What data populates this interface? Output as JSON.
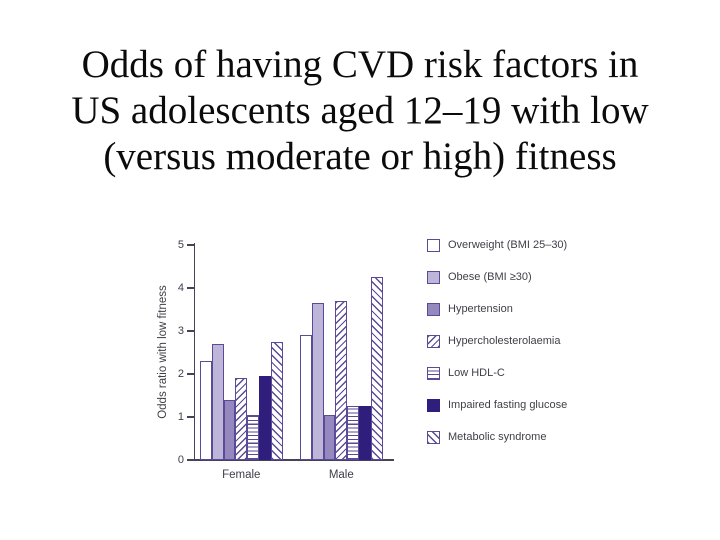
{
  "slide": {
    "title_lines": [
      "Odds of having CVD risk factors in",
      "US adolescents aged 12–19 with low",
      "(versus moderate or high) fitness"
    ]
  },
  "chart_data": {
    "type": "bar",
    "title": "Odds of having CVD risk factors in US adolescents aged 12–19 with low (versus moderate or high) fitness",
    "xlabel": "",
    "ylabel": "Odds ratio with low fitness",
    "ylim": [
      0,
      5
    ],
    "yticks": [
      "0",
      "1",
      "2",
      "3",
      "4",
      "5"
    ],
    "grid": false,
    "legend_position": "right",
    "categories": [
      "Female",
      "Male"
    ],
    "series": [
      {
        "name": "Overweight (BMI 25–30)",
        "values": [
          2.3,
          2.9
        ],
        "pattern": "outline"
      },
      {
        "name": "Obese (BMI ≥30)",
        "values": [
          2.7,
          3.65
        ],
        "pattern": "solid-light"
      },
      {
        "name": "Hypertension",
        "values": [
          1.4,
          1.05
        ],
        "pattern": "solid-medium"
      },
      {
        "name": "Hypercholesterolaemia",
        "values": [
          1.9,
          3.7
        ],
        "pattern": "hatch-forward"
      },
      {
        "name": "Low HDL-C",
        "values": [
          1.05,
          1.25
        ],
        "pattern": "hlines"
      },
      {
        "name": "Impaired fasting glucose",
        "values": [
          1.95,
          1.25
        ],
        "pattern": "solid-dark"
      },
      {
        "name": "Metabolic syndrome",
        "values": [
          2.75,
          4.25
        ],
        "pattern": "hatch-back"
      }
    ],
    "colors": {
      "hatch_outline_purple": "#5a4a97",
      "light_purple": "#beb6d8",
      "medium_purple": "#9488be",
      "dark_indigo": "#301e7d",
      "axis": "#46425c",
      "text": "#3e3e4a",
      "background": "#ffffff"
    }
  }
}
